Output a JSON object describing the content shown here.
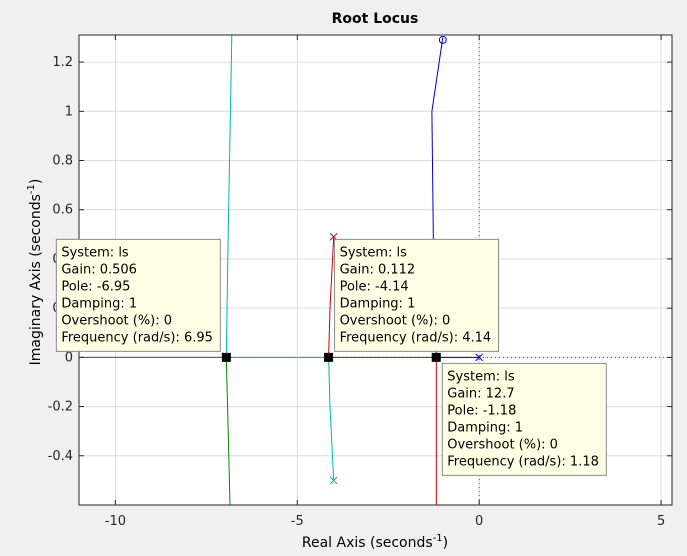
{
  "chart_data": {
    "type": "line",
    "title": "Root Locus",
    "xlabel": "Real Axis (seconds",
    "xlabel_exp": "-1",
    "xlabel_close": ")",
    "ylabel": "Imaginary Axis (seconds",
    "ylabel_exp": "-1",
    "ylabel_close": ")",
    "xlim": [
      -11,
      5.3
    ],
    "ylim": [
      -0.6,
      1.31
    ],
    "xticks": [
      -10,
      -5,
      0,
      5
    ],
    "yticks": [
      -0.4,
      -0.2,
      0,
      0.2,
      0.4,
      0.6,
      0.8,
      1,
      1.2
    ],
    "xtick_labels": [
      "-10",
      "-5",
      "0",
      "5"
    ],
    "ytick_labels": [
      "-0.4",
      "-0.2",
      "0",
      "0.2",
      "0.4",
      "0.6",
      "0.8",
      "1",
      "1.2"
    ],
    "grid": true,
    "series": [
      {
        "color": "#0000cc",
        "points": [
          [
            0,
            0
          ],
          [
            -1.18,
            0
          ],
          [
            -1.18,
            0.03
          ],
          [
            -1.22,
            0.2
          ],
          [
            -1.26,
            0.5
          ],
          [
            -1.3,
            1.0
          ],
          [
            -1.0,
            1.3
          ]
        ]
      },
      {
        "color": "#cc0000",
        "points": [
          [
            -4.0,
            0.49
          ],
          [
            -4.1,
            0.2
          ],
          [
            -4.14,
            0
          ],
          [
            -1.18,
            0
          ],
          [
            -1.18,
            -0.6
          ]
        ]
      },
      {
        "color": "#00b3b3",
        "points": [
          [
            -4.0,
            -0.5
          ],
          [
            -4.1,
            -0.2
          ],
          [
            -4.14,
            0
          ],
          [
            -6.95,
            0
          ],
          [
            -6.9,
            0.5
          ],
          [
            -6.8,
            1.31
          ]
        ]
      },
      {
        "color": "#008800",
        "points": [
          [
            -11,
            0
          ],
          [
            -6.95,
            0
          ],
          [
            -6.9,
            -0.3
          ],
          [
            -6.85,
            -0.6
          ]
        ]
      }
    ],
    "poles": [
      [
        0,
        0
      ],
      [
        -4.0,
        0.49
      ],
      [
        -4.0,
        -0.5
      ]
    ],
    "zeros": [
      [
        -1.0,
        1.29
      ]
    ],
    "data_markers": [
      [
        -6.95,
        0
      ],
      [
        -4.14,
        0
      ],
      [
        -1.18,
        0
      ]
    ],
    "datatips": [
      {
        "anchor": [
          -6.95,
          0
        ],
        "placement": "upper-left",
        "lines": [
          "System: ls",
          "Gain: 0.506",
          "Pole: -6.95",
          "Damping: 1",
          "Overshoot (%): 0",
          "Frequency (rad/s): 6.95"
        ]
      },
      {
        "anchor": [
          -4.14,
          0
        ],
        "placement": "upper-right",
        "lines": [
          "System: ls",
          "Gain: 0.112",
          "Pole: -4.14",
          "Damping: 1",
          "Overshoot (%): 0",
          "Frequency (rad/s): 4.14"
        ]
      },
      {
        "anchor": [
          -1.18,
          0
        ],
        "placement": "lower-right",
        "lines": [
          "System: ls",
          "Gain: 12.7",
          "Pole: -1.18",
          "Damping: 1",
          "Overshoot (%): 0",
          "Frequency (rad/s): 1.18"
        ]
      }
    ]
  }
}
